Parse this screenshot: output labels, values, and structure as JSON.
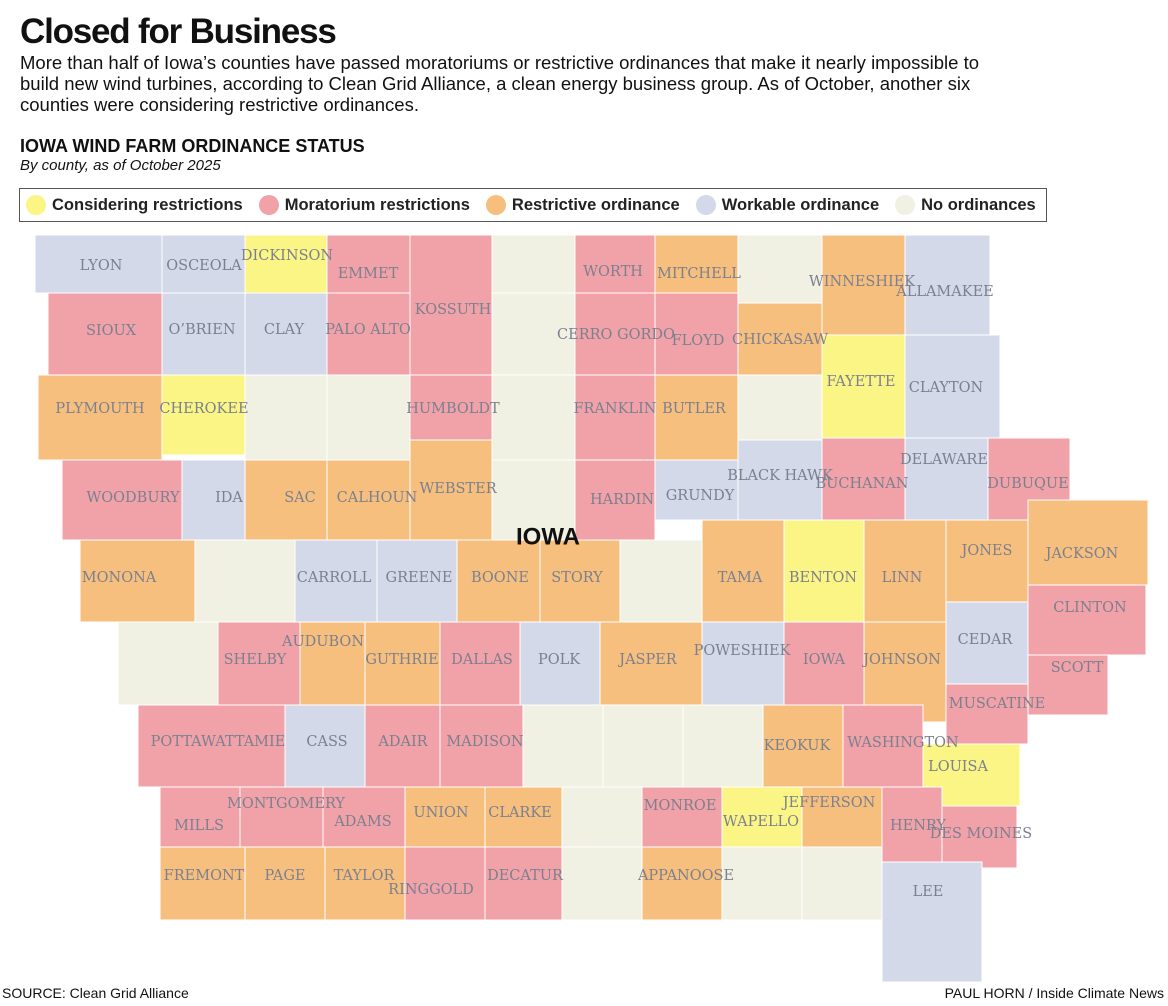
{
  "header": {
    "title": "Closed for Business",
    "description": "More than half of Iowa’s counties have passed moratoriums or restrictive ordinances that make it nearly impossible to build new wind turbines, according to Clean Grid Alliance, a clean energy business group. As of October, another six counties were considering restrictive ordinances.",
    "map_title": "IOWA WIND FARM ORDINANCE STATUS",
    "map_subtitle": "By county, as of October 2025"
  },
  "legend": [
    {
      "label": "Considering restrictions",
      "color": "#fbf586"
    },
    {
      "label": "Moratorium restrictions",
      "color": "#f1a2a8"
    },
    {
      "label": "Restrictive ordinance",
      "color": "#f7bf7d"
    },
    {
      "label": "Workable ordinance",
      "color": "#d3d9e9"
    },
    {
      "label": "No ordinances",
      "color": "#f1f1e3"
    }
  ],
  "map": {
    "state_label": "IOWA",
    "counties": [
      {
        "name": "LYON",
        "color": "#d3d9e9"
      },
      {
        "name": "OSCEOLA",
        "color": "#d3d9e9"
      },
      {
        "name": "DICKINSON",
        "color": "#fbf586"
      },
      {
        "name": "EMMET",
        "color": "#f1a2a8"
      },
      {
        "name": "KOSSUTH",
        "color": "#f1a2a8"
      },
      {
        "name": null,
        "color": "#f1f1e3"
      },
      {
        "name": "WORTH",
        "color": "#f1a2a8"
      },
      {
        "name": "MITCHELL",
        "color": "#f7bf7d"
      },
      {
        "name": null,
        "color": "#f1f1e3"
      },
      {
        "name": "WINNESHIEK",
        "color": "#f7bf7d"
      },
      {
        "name": "ALLAMAKEE",
        "color": "#d3d9e9"
      },
      {
        "name": "SIOUX",
        "color": "#f1a2a8"
      },
      {
        "name": "O’BRIEN",
        "color": "#d3d9e9"
      },
      {
        "name": "CLAY",
        "color": "#d3d9e9"
      },
      {
        "name": "PALO ALTO",
        "color": "#f1a2a8"
      },
      {
        "name": null,
        "color": "#f1f1e3"
      },
      {
        "name": "CERRO GORDO",
        "color": "#f1a2a8"
      },
      {
        "name": "FLOYD",
        "color": "#f1a2a8"
      },
      {
        "name": "CHICKASAW",
        "color": "#f7bf7d"
      },
      {
        "name": "FAYETTE",
        "color": "#fbf586"
      },
      {
        "name": "CLAYTON",
        "color": "#d3d9e9"
      },
      {
        "name": "PLYMOUTH",
        "color": "#f7bf7d"
      },
      {
        "name": "CHEROKEE",
        "color": "#fbf586"
      },
      {
        "name": null,
        "color": "#f1f1e3"
      },
      {
        "name": null,
        "color": "#f1f1e3"
      },
      {
        "name": "HUMBOLDT",
        "color": "#f1a2a8"
      },
      {
        "name": null,
        "color": "#f1f1e3"
      },
      {
        "name": "FRANKLIN",
        "color": "#f1a2a8"
      },
      {
        "name": "BUTLER",
        "color": "#f7bf7d"
      },
      {
        "name": null,
        "color": "#f1f1e3"
      },
      {
        "name": "WOODBURY",
        "color": "#f1a2a8"
      },
      {
        "name": "IDA",
        "color": "#d3d9e9"
      },
      {
        "name": "SAC",
        "color": "#f7bf7d"
      },
      {
        "name": "CALHOUN",
        "color": "#f7bf7d"
      },
      {
        "name": "WEBSTER",
        "color": "#f7bf7d"
      },
      {
        "name": null,
        "color": "#f1f1e3"
      },
      {
        "name": "HARDIN",
        "color": "#f1a2a8"
      },
      {
        "name": "GRUNDY",
        "color": "#d3d9e9"
      },
      {
        "name": "BLACK HAWK",
        "color": "#d3d9e9"
      },
      {
        "name": "BUCHANAN",
        "color": "#f1a2a8"
      },
      {
        "name": "DELAWARE",
        "color": "#d3d9e9"
      },
      {
        "name": "DUBUQUE",
        "color": "#f1a2a8"
      },
      {
        "name": "MONONA",
        "color": "#f7bf7d"
      },
      {
        "name": null,
        "color": "#f1f1e3"
      },
      {
        "name": "CARROLL",
        "color": "#d3d9e9"
      },
      {
        "name": "GREENE",
        "color": "#d3d9e9"
      },
      {
        "name": "BOONE",
        "color": "#f7bf7d"
      },
      {
        "name": "STORY",
        "color": "#f7bf7d"
      },
      {
        "name": null,
        "color": "#f1f1e3"
      },
      {
        "name": "TAMA",
        "color": "#f7bf7d"
      },
      {
        "name": "BENTON",
        "color": "#fbf586"
      },
      {
        "name": "LINN",
        "color": "#f7bf7d"
      },
      {
        "name": "JONES",
        "color": "#f7bf7d"
      },
      {
        "name": "JACKSON",
        "color": "#f7bf7d"
      },
      {
        "name": null,
        "color": "#f1f1e3"
      },
      {
        "name": "SHELBY",
        "color": "#f1a2a8"
      },
      {
        "name": "AUDUBON",
        "color": "#f7bf7d"
      },
      {
        "name": "GUTHRIE",
        "color": "#f7bf7d"
      },
      {
        "name": "DALLAS",
        "color": "#f1a2a8"
      },
      {
        "name": "POLK",
        "color": "#d3d9e9"
      },
      {
        "name": "JASPER",
        "color": "#f7bf7d"
      },
      {
        "name": "POWESHIEK",
        "color": "#d3d9e9"
      },
      {
        "name": "IOWA",
        "color": "#f1a2a8"
      },
      {
        "name": "JOHNSON",
        "color": "#f7bf7d"
      },
      {
        "name": "CEDAR",
        "color": "#d3d9e9"
      },
      {
        "name": "CLINTON",
        "color": "#f1a2a8"
      },
      {
        "name": "SCOTT",
        "color": "#f1a2a8"
      },
      {
        "name": "MUSCATINE",
        "color": "#f1a2a8"
      },
      {
        "name": "POTTAWATTAMIE",
        "color": "#f1a2a8"
      },
      {
        "name": "CASS",
        "color": "#d3d9e9"
      },
      {
        "name": "ADAIR",
        "color": "#f1a2a8"
      },
      {
        "name": "MADISON",
        "color": "#f1a2a8"
      },
      {
        "name": null,
        "color": "#f1f1e3"
      },
      {
        "name": null,
        "color": "#f1f1e3"
      },
      {
        "name": null,
        "color": "#f1f1e3"
      },
      {
        "name": "KEOKUK",
        "color": "#f7bf7d"
      },
      {
        "name": "WASHINGTON",
        "color": "#f1a2a8"
      },
      {
        "name": "LOUISA",
        "color": "#fbf586"
      },
      {
        "name": "MILLS",
        "color": "#f1a2a8"
      },
      {
        "name": "MONTGOMERY",
        "color": "#f1a2a8"
      },
      {
        "name": "ADAMS",
        "color": "#f1a2a8"
      },
      {
        "name": "UNION",
        "color": "#f7bf7d"
      },
      {
        "name": "CLARKE",
        "color": "#f7bf7d"
      },
      {
        "name": null,
        "color": "#f1f1e3"
      },
      {
        "name": "MONROE",
        "color": "#f1a2a8"
      },
      {
        "name": "WAPELLO",
        "color": "#fbf586"
      },
      {
        "name": "JEFFERSON",
        "color": "#f7bf7d"
      },
      {
        "name": "HENRY",
        "color": "#f1a2a8"
      },
      {
        "name": "DES MOINES",
        "color": "#f1a2a8"
      },
      {
        "name": "FREMONT",
        "color": "#f7bf7d"
      },
      {
        "name": "PAGE",
        "color": "#f7bf7d"
      },
      {
        "name": "TAYLOR",
        "color": "#f7bf7d"
      },
      {
        "name": "RINGGOLD",
        "color": "#f1a2a8"
      },
      {
        "name": "DECATUR",
        "color": "#f1a2a8"
      },
      {
        "name": null,
        "color": "#f1f1e3"
      },
      {
        "name": "APPANOOSE",
        "color": "#f7bf7d"
      },
      {
        "name": null,
        "color": "#f1f1e3"
      },
      {
        "name": null,
        "color": "#f1f1e3"
      },
      {
        "name": "LEE",
        "color": "#d3d9e9"
      }
    ]
  },
  "footer": {
    "source": "SOURCE: Clean Grid Alliance",
    "credit": "PAUL HORN / Inside Climate News"
  }
}
